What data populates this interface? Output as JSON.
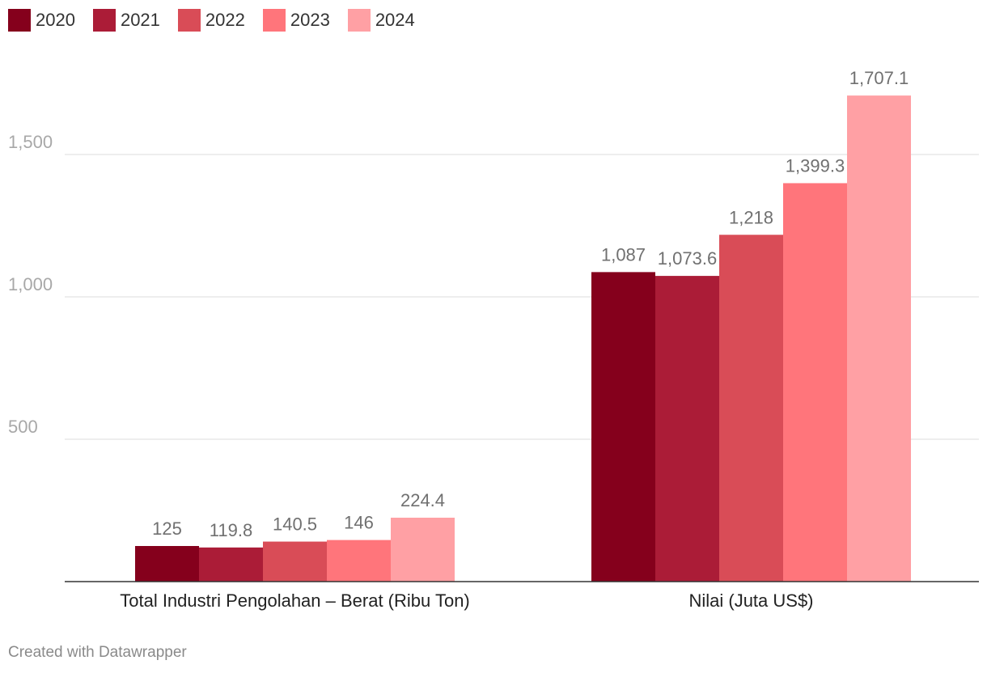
{
  "chart_data": {
    "type": "bar",
    "categories": [
      "Total Industri Pengolahan – Berat (Ribu Ton)",
      "Nilai (Juta US$)"
    ],
    "series": [
      {
        "name": "2020",
        "color": "#85001c",
        "values": [
          125,
          1087
        ],
        "labels": [
          "125",
          "1,087"
        ]
      },
      {
        "name": "2021",
        "color": "#ab1c37",
        "values": [
          119.8,
          1073.6
        ],
        "labels": [
          "119.8",
          "1,073.6"
        ]
      },
      {
        "name": "2022",
        "color": "#d94c57",
        "values": [
          140.5,
          1218
        ],
        "labels": [
          "140.5",
          "1,218"
        ]
      },
      {
        "name": "2023",
        "color": "#ff757b",
        "values": [
          146,
          1399.3
        ],
        "labels": [
          "146",
          "1,399.3"
        ]
      },
      {
        "name": "2024",
        "color": "#ffa0a4",
        "values": [
          224.4,
          1707.1
        ],
        "labels": [
          "224.4",
          "1,707.1"
        ]
      }
    ],
    "y_ticks": [
      500,
      1000,
      1500
    ],
    "y_tick_labels": [
      "500",
      "1,000",
      "1,500"
    ],
    "ylim": [
      0,
      1800
    ],
    "grid": true,
    "legend_position": "top-left"
  },
  "footer": "Created with Datawrapper"
}
